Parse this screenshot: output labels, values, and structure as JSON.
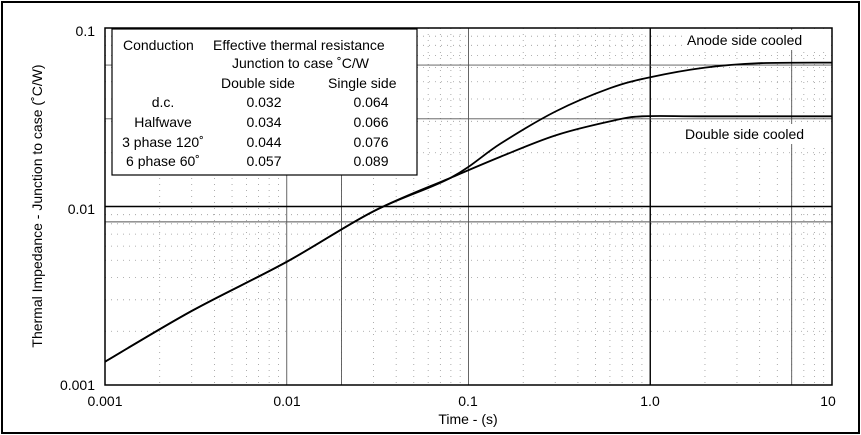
{
  "chart_data": {
    "type": "line",
    "xlabel": "Time - (s)",
    "ylabel": "Thermal Impedance - Junction to case (˚C/W)",
    "x_scale": "log",
    "y_scale": "log",
    "xlim": [
      0.001,
      10
    ],
    "ylim": [
      0.001,
      0.1
    ],
    "x_tick_labels": [
      "0.001",
      "0.01",
      "0.1",
      "1.0",
      "10"
    ],
    "y_tick_labels": [
      "0.001",
      "0.01",
      "0.1"
    ],
    "grid": "log minor dotted, selected major lines solid",
    "series": [
      {
        "name": "Anode side cooled",
        "x": [
          0.001,
          0.003,
          0.01,
          0.03,
          0.08,
          0.15,
          0.3,
          0.6,
          1.0,
          2.0,
          4.0,
          10
        ],
        "y": [
          0.00135,
          0.0026,
          0.0049,
          0.0094,
          0.0145,
          0.0225,
          0.034,
          0.046,
          0.053,
          0.06,
          0.0635,
          0.064
        ]
      },
      {
        "name": "Double side cooled",
        "x": [
          0.001,
          0.003,
          0.01,
          0.03,
          0.08,
          0.15,
          0.3,
          0.6,
          0.9,
          2.0,
          10
        ],
        "y": [
          0.00135,
          0.0026,
          0.0049,
          0.0094,
          0.0145,
          0.019,
          0.025,
          0.03,
          0.032,
          0.032,
          0.032
        ]
      }
    ],
    "reference_lines": {
      "horizontal": [
        0.01,
        0.0082,
        0.031,
        0.062
      ],
      "vertical": [
        0.01,
        0.02,
        0.1,
        1.0,
        6.0
      ]
    },
    "annotations": [
      "Anode side cooled",
      "Double side cooled"
    ],
    "table": {
      "header_col1": "Conduction",
      "header_col2": "Effective thermal resistance",
      "header_sub": "Junction to case ˚C/W",
      "col_a": "Double side",
      "col_b": "Single side",
      "rows": [
        [
          "d.c.",
          "0.032",
          "0.064"
        ],
        [
          "Halfwave",
          "0.034",
          "0.066"
        ],
        [
          "3 phase 120˚",
          "0.044",
          "0.076"
        ],
        [
          "6 phase 60˚",
          "0.057",
          "0.089"
        ]
      ]
    }
  }
}
